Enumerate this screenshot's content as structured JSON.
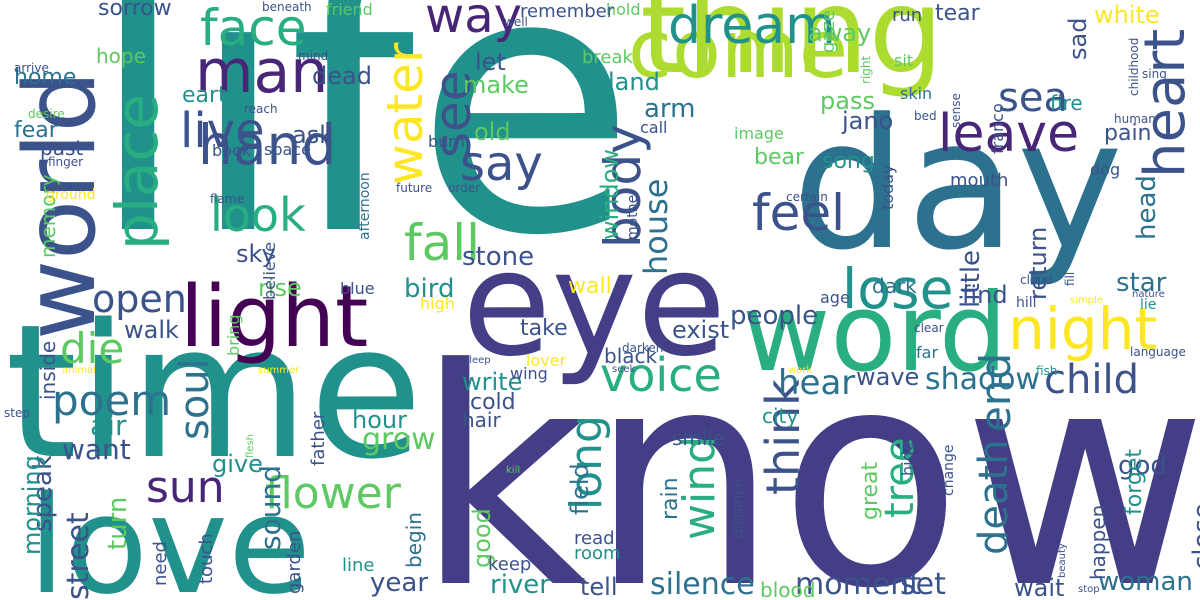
{
  "words": [
    {
      "text": "know",
      "color": "#433e85"
    },
    {
      "text": "life",
      "color": "#21918c"
    },
    {
      "text": "eye",
      "color": "#433e85"
    },
    {
      "text": "day",
      "color": "#2c728e"
    },
    {
      "text": "time",
      "color": "#21918c"
    },
    {
      "text": "thing",
      "color": "#addc30"
    },
    {
      "text": "come",
      "color": "#addc30"
    },
    {
      "text": "love",
      "color": "#21918c"
    },
    {
      "text": "word",
      "color": "#28ae80"
    },
    {
      "text": "world",
      "color": "#3b528b"
    },
    {
      "text": "light",
      "color": "#440154"
    },
    {
      "text": "face",
      "color": "#28ae80"
    },
    {
      "text": "heart",
      "color": "#3b528b"
    },
    {
      "text": "night",
      "color": "#fde725"
    },
    {
      "text": "man",
      "color": "#482677"
    },
    {
      "text": "hand",
      "color": "#3b528b"
    },
    {
      "text": "place",
      "color": "#28ae80"
    },
    {
      "text": "dream",
      "color": "#21918c"
    },
    {
      "text": "leave",
      "color": "#482677"
    },
    {
      "text": "lose",
      "color": "#21918c"
    },
    {
      "text": "way",
      "color": "#482677"
    },
    {
      "text": "see",
      "color": "#3b528b"
    },
    {
      "text": "sea",
      "color": "#3b528b"
    },
    {
      "text": "water",
      "color": "#fde725"
    },
    {
      "text": "say",
      "color": "#3b528b"
    },
    {
      "text": "live",
      "color": "#3b528b"
    },
    {
      "text": "fall",
      "color": "#5ec962"
    },
    {
      "text": "feel",
      "color": "#3b528b"
    },
    {
      "text": "look",
      "color": "#28ae80"
    },
    {
      "text": "body",
      "color": "#3b528b"
    },
    {
      "text": "end",
      "color": "#2c728e"
    },
    {
      "text": "voice",
      "color": "#28ae80"
    },
    {
      "text": "open",
      "color": "#3b528b"
    },
    {
      "text": "die",
      "color": "#5ec962"
    },
    {
      "text": "poem",
      "color": "#2c728e"
    },
    {
      "text": "soul",
      "color": "#2c728e"
    },
    {
      "text": "sun",
      "color": "#482677"
    },
    {
      "text": "flower",
      "color": "#5ec962"
    },
    {
      "text": "long",
      "color": "#21918c"
    },
    {
      "text": "wind",
      "color": "#28ae80"
    },
    {
      "text": "think",
      "color": "#3b528b"
    },
    {
      "text": "death",
      "color": "#2c728e"
    },
    {
      "text": "tree",
      "color": "#28ae80"
    },
    {
      "text": "child",
      "color": "#3b528b"
    },
    {
      "text": "shadow",
      "color": "#2c728e"
    },
    {
      "text": "hear",
      "color": "#2c728e"
    },
    {
      "text": "house",
      "color": "#2c728e"
    },
    {
      "text": "silence",
      "color": "#2c728e"
    },
    {
      "text": "moment",
      "color": "#3b528b"
    },
    {
      "text": "set",
      "color": "#3b528b"
    },
    {
      "text": "woman",
      "color": "#2c728e"
    },
    {
      "text": "wait",
      "color": "#3b528b"
    },
    {
      "text": "river",
      "color": "#21918c"
    },
    {
      "text": "tell",
      "color": "#3b528b"
    },
    {
      "text": "year",
      "color": "#3b528b"
    },
    {
      "text": "sound",
      "color": "#2c728e"
    },
    {
      "text": "grow",
      "color": "#5ec962"
    },
    {
      "text": "street",
      "color": "#3b528b"
    },
    {
      "text": "speak",
      "color": "#3b528b"
    },
    {
      "text": "turn",
      "color": "#5ec962"
    },
    {
      "text": "morning",
      "color": "#21918c"
    },
    {
      "text": "want",
      "color": "#3b528b"
    },
    {
      "text": "air",
      "color": "#21918c"
    },
    {
      "text": "walk",
      "color": "#3b528b"
    },
    {
      "text": "give",
      "color": "#21918c"
    },
    {
      "text": "hour",
      "color": "#21918c"
    },
    {
      "text": "sky",
      "color": "#3b528b"
    },
    {
      "text": "rise",
      "color": "#5ec962"
    },
    {
      "text": "bird",
      "color": "#21918c"
    },
    {
      "text": "stone",
      "color": "#3b528b"
    },
    {
      "text": "wall",
      "color": "#fde725"
    },
    {
      "text": "window",
      "color": "#28ae80"
    },
    {
      "text": "field",
      "color": "#2c728e"
    },
    {
      "text": "write",
      "color": "#21918c"
    },
    {
      "text": "cold",
      "color": "#3b528b"
    },
    {
      "text": "hair",
      "color": "#3b528b"
    },
    {
      "text": "old",
      "color": "#5ec962"
    },
    {
      "text": "arm",
      "color": "#2c728e"
    },
    {
      "text": "make",
      "color": "#5ec962"
    },
    {
      "text": "let",
      "color": "#3b528b"
    },
    {
      "text": "land",
      "color": "#21918c"
    },
    {
      "text": "dead",
      "color": "#3b528b"
    },
    {
      "text": "ask",
      "color": "#3b528b"
    },
    {
      "text": "earth",
      "color": "#21918c"
    },
    {
      "text": "fear",
      "color": "#2c728e"
    },
    {
      "text": "past",
      "color": "#3b528b"
    },
    {
      "text": "home",
      "color": "#2c728e"
    },
    {
      "text": "hope",
      "color": "#5ec962"
    },
    {
      "text": "sorrow",
      "color": "#3b528b"
    },
    {
      "text": "memory",
      "color": "#5ec962"
    },
    {
      "text": "inside",
      "color": "#3b528b"
    },
    {
      "text": "star",
      "color": "#2c728e"
    },
    {
      "text": "head",
      "color": "#2c728e"
    },
    {
      "text": "little",
      "color": "#3b528b"
    },
    {
      "text": "return",
      "color": "#3b528b"
    },
    {
      "text": "find",
      "color": "#3b528b"
    },
    {
      "text": "people",
      "color": "#3b528b"
    },
    {
      "text": "exist",
      "color": "#3b528b"
    },
    {
      "text": "take",
      "color": "#3b528b"
    },
    {
      "text": "dark",
      "color": "#2c728e"
    },
    {
      "text": "wave",
      "color": "#3b528b"
    },
    {
      "text": "pass",
      "color": "#5ec962"
    },
    {
      "text": "jano",
      "color": "#3b528b"
    },
    {
      "text": "bear",
      "color": "#5ec962"
    },
    {
      "text": "song",
      "color": "#21918c"
    },
    {
      "text": "tear",
      "color": "#3b528b"
    },
    {
      "text": "white",
      "color": "#fde725"
    },
    {
      "text": "sad",
      "color": "#3b528b"
    },
    {
      "text": "away",
      "color": "#5ec962"
    },
    {
      "text": "fire",
      "color": "#21918c"
    },
    {
      "text": "pain",
      "color": "#3b528b"
    },
    {
      "text": "close",
      "color": "#3b528b"
    },
    {
      "text": "god",
      "color": "#3b528b"
    },
    {
      "text": "forget",
      "color": "#21918c"
    },
    {
      "text": "happen",
      "color": "#3b528b"
    },
    {
      "text": "great",
      "color": "#5ec962"
    },
    {
      "text": "rain",
      "color": "#2c728e"
    },
    {
      "text": "black",
      "color": "#3b528b"
    },
    {
      "text": "city",
      "color": "#21918c"
    },
    {
      "text": "smile",
      "color": "#3b528b"
    },
    {
      "text": "blood",
      "color": "#5ec962"
    },
    {
      "text": "good",
      "color": "#5ec962"
    },
    {
      "text": "begin",
      "color": "#2c728e"
    },
    {
      "text": "need",
      "color": "#3b528b"
    },
    {
      "text": "touch",
      "color": "#3b528b"
    },
    {
      "text": "garden",
      "color": "#3b528b"
    },
    {
      "text": "line",
      "color": "#21918c"
    },
    {
      "text": "keep",
      "color": "#3b528b"
    },
    {
      "text": "room",
      "color": "#21918c"
    },
    {
      "text": "read",
      "color": "#3b528b"
    },
    {
      "text": "father",
      "color": "#3b528b"
    },
    {
      "text": "blue",
      "color": "#3b528b"
    },
    {
      "text": "believe",
      "color": "#3b528b"
    },
    {
      "text": "bring",
      "color": "#5ec962"
    },
    {
      "text": "high",
      "color": "#fde725"
    },
    {
      "text": "lover",
      "color": "#fde725"
    },
    {
      "text": "wing",
      "color": "#3b528b"
    },
    {
      "text": "mouth",
      "color": "#3b528b"
    },
    {
      "text": "age",
      "color": "#3b528b"
    },
    {
      "text": "today",
      "color": "#3b528b"
    },
    {
      "text": "far",
      "color": "#2c728e"
    },
    {
      "text": "skin",
      "color": "#2c728e"
    },
    {
      "text": "sit",
      "color": "#5ec962"
    },
    {
      "text": "run",
      "color": "#3b528b"
    },
    {
      "text": "gaze",
      "color": "#5ec962"
    },
    {
      "text": "hold",
      "color": "#5ec962"
    },
    {
      "text": "remember",
      "color": "#3b528b"
    },
    {
      "text": "break",
      "color": "#5ec962"
    },
    {
      "text": "call",
      "color": "#3b528b"
    },
    {
      "text": "image",
      "color": "#5ec962"
    },
    {
      "text": "darken",
      "color": "#3b528b"
    },
    {
      "text": "certain",
      "color": "#3b528b"
    },
    {
      "text": "mother",
      "color": "#3b528b"
    },
    {
      "text": "burn",
      "color": "#3b528b"
    },
    {
      "text": "book",
      "color": "#3b528b"
    },
    {
      "text": "space",
      "color": "#3b528b"
    },
    {
      "text": "afternoon",
      "color": "#2c728e"
    },
    {
      "text": "future",
      "color": "#3b528b"
    },
    {
      "text": "order",
      "color": "#3b528b"
    },
    {
      "text": "flame",
      "color": "#3b528b"
    },
    {
      "text": "reach",
      "color": "#3b528b"
    },
    {
      "text": "mind",
      "color": "#3b528b"
    },
    {
      "text": "friend",
      "color": "#5ec962"
    },
    {
      "text": "beneath",
      "color": "#3b528b"
    },
    {
      "text": "well",
      "color": "#3b528b"
    },
    {
      "text": "arrive",
      "color": "#3b528b"
    },
    {
      "text": "desire",
      "color": "#5ec962"
    },
    {
      "text": "finger",
      "color": "#3b528b"
    },
    {
      "text": "ground",
      "color": "#fde725"
    },
    {
      "text": "step",
      "color": "#3b528b"
    },
    {
      "text": "flesh",
      "color": "#5ec962"
    },
    {
      "text": "animal",
      "color": "#fde725"
    },
    {
      "text": "summer",
      "color": "#fde725"
    },
    {
      "text": "sleep",
      "color": "#3b528b"
    },
    {
      "text": "seek",
      "color": "#3b528b"
    },
    {
      "text": "kill",
      "color": "#5ec962"
    },
    {
      "text": "work",
      "color": "#fde725"
    },
    {
      "text": "distance",
      "color": "#3b528b"
    },
    {
      "text": "hill",
      "color": "#3b528b"
    },
    {
      "text": "simple",
      "color": "#fde725"
    },
    {
      "text": "clear",
      "color": "#3b528b"
    },
    {
      "text": "fish",
      "color": "#21918c"
    },
    {
      "text": "language",
      "color": "#3b528b"
    },
    {
      "text": "cloud",
      "color": "#3b528b"
    },
    {
      "text": "fill",
      "color": "#3b528b"
    },
    {
      "text": "nature",
      "color": "#3b528b"
    },
    {
      "text": "beauty",
      "color": "#3b528b"
    },
    {
      "text": "stop",
      "color": "#3b528b"
    },
    {
      "text": "hide",
      "color": "#3b528b"
    },
    {
      "text": "change",
      "color": "#3b528b"
    },
    {
      "text": "lie",
      "color": "#21918c"
    },
    {
      "text": "dog",
      "color": "#3b528b"
    },
    {
      "text": "human",
      "color": "#3b528b"
    },
    {
      "text": "bed",
      "color": "#3b528b"
    },
    {
      "text": "sense",
      "color": "#3b528b"
    },
    {
      "text": "franco",
      "color": "#3b528b"
    },
    {
      "text": "right",
      "color": "#5ec962"
    },
    {
      "text": "childhood",
      "color": "#3b528b"
    },
    {
      "text": "sing",
      "color": "#3b528b"
    }
  ]
}
